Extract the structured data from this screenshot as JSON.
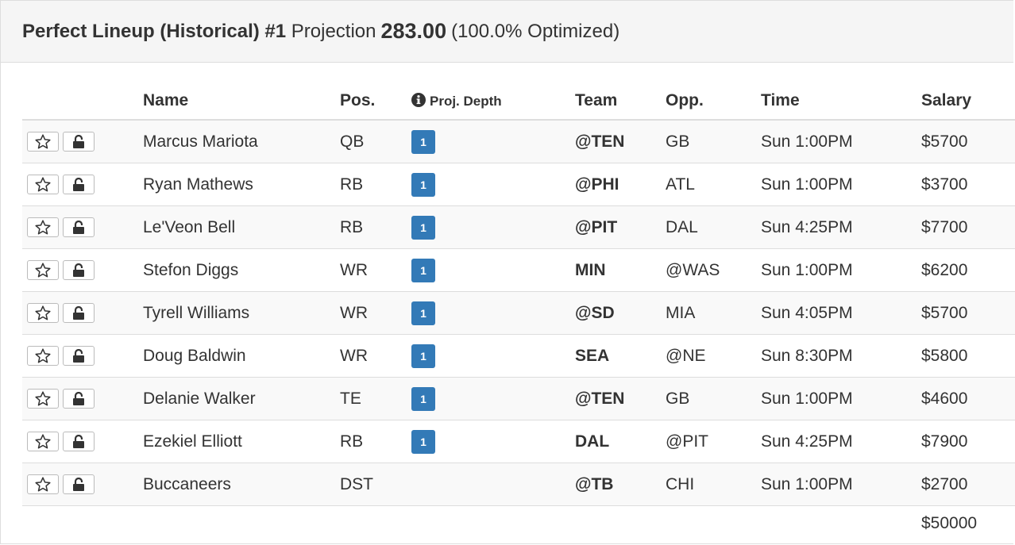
{
  "header": {
    "title": "Perfect Lineup (Historical) #1",
    "projection_label": "Projection",
    "projection_value": "283.00",
    "optimized": "(100.0% Optimized)"
  },
  "table": {
    "columns": {
      "name": "Name",
      "pos": "Pos.",
      "depth": "Proj. Depth",
      "team": "Team",
      "opp": "Opp.",
      "time": "Time",
      "salary": "Salary"
    },
    "rows": [
      {
        "name": "Marcus Mariota",
        "pos": "QB",
        "depth": "1",
        "team": "@TEN",
        "opp": "GB",
        "time": "Sun 1:00PM",
        "salary": "$5700"
      },
      {
        "name": "Ryan Mathews",
        "pos": "RB",
        "depth": "1",
        "team": "@PHI",
        "opp": "ATL",
        "time": "Sun 1:00PM",
        "salary": "$3700"
      },
      {
        "name": "Le'Veon Bell",
        "pos": "RB",
        "depth": "1",
        "team": "@PIT",
        "opp": "DAL",
        "time": "Sun 4:25PM",
        "salary": "$7700"
      },
      {
        "name": "Stefon Diggs",
        "pos": "WR",
        "depth": "1",
        "team": "MIN",
        "opp": "@WAS",
        "time": "Sun 1:00PM",
        "salary": "$6200"
      },
      {
        "name": "Tyrell Williams",
        "pos": "WR",
        "depth": "1",
        "team": "@SD",
        "opp": "MIA",
        "time": "Sun 4:05PM",
        "salary": "$5700"
      },
      {
        "name": "Doug Baldwin",
        "pos": "WR",
        "depth": "1",
        "team": "SEA",
        "opp": "@NE",
        "time": "Sun 8:30PM",
        "salary": "$5800"
      },
      {
        "name": "Delanie Walker",
        "pos": "TE",
        "depth": "1",
        "team": "@TEN",
        "opp": "GB",
        "time": "Sun 1:00PM",
        "salary": "$4600"
      },
      {
        "name": "Ezekiel Elliott",
        "pos": "RB",
        "depth": "1",
        "team": "DAL",
        "opp": "@PIT",
        "time": "Sun 4:25PM",
        "salary": "$7900"
      },
      {
        "name": "Buccaneers",
        "pos": "DST",
        "depth": "",
        "team": "@TB",
        "opp": "CHI",
        "time": "Sun 1:00PM",
        "salary": "$2700"
      }
    ],
    "total_salary": "$50000"
  },
  "icons": {
    "favorite": "star-outline-icon",
    "lock": "unlock-icon",
    "info": "info-circle-icon"
  },
  "colors": {
    "badge": "#337ab7",
    "heading_bg": "#f5f5f5",
    "stripe": "#f9f9f9"
  }
}
